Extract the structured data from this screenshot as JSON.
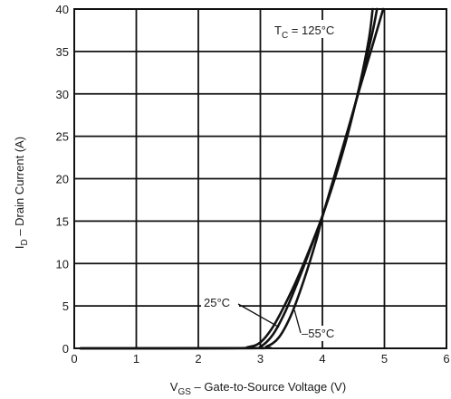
{
  "chart_data": {
    "type": "line",
    "xlabel": {
      "symbol": "V",
      "subscript": "GS",
      "text": " – Gate-to-Source Voltage (V)"
    },
    "ylabel": {
      "symbol": "I",
      "subscript": "D",
      "text": " – Drain Current (A)"
    },
    "xlim": [
      0,
      6
    ],
    "ylim": [
      0,
      40
    ],
    "xticks": [
      0,
      1,
      2,
      3,
      4,
      5,
      6
    ],
    "yticks": [
      0,
      5,
      10,
      15,
      20,
      25,
      30,
      35,
      40
    ],
    "grid": true,
    "series": [
      {
        "name": "125°C",
        "x": [
          0.1,
          2.5,
          2.8,
          3.0,
          3.2,
          3.4,
          3.6,
          3.8,
          4.0,
          4.2,
          4.4,
          4.6,
          4.75,
          4.81
        ],
        "y": [
          0,
          0.02,
          0.15,
          0.7,
          2.5,
          5.2,
          8.3,
          11.8,
          15.6,
          20.0,
          25.0,
          31.0,
          36.5,
          40
        ]
      },
      {
        "name": "25°C",
        "x": [
          0.1,
          2.8,
          3.0,
          3.2,
          3.4,
          3.6,
          3.8,
          4.0,
          4.2,
          4.4,
          4.6,
          4.8,
          4.88
        ],
        "y": [
          0,
          0.02,
          0.2,
          1.6,
          4.3,
          7.8,
          11.6,
          15.6,
          20.3,
          25.3,
          30.8,
          37.0,
          40
        ]
      },
      {
        "name": "−55°C",
        "x": [
          0.1,
          2.9,
          3.1,
          3.3,
          3.5,
          3.7,
          3.9,
          4.0,
          4.2,
          4.4,
          4.6,
          4.8,
          4.98
        ],
        "y": [
          0,
          0.02,
          0.2,
          1.3,
          4.0,
          8.0,
          12.7,
          15.5,
          20.5,
          25.5,
          30.6,
          35.5,
          40
        ]
      }
    ],
    "annotations": [
      {
        "symbol": "T",
        "subscript": "C",
        "text": " = 125°C",
        "series": "125°C"
      },
      {
        "text": "25°C",
        "series": "25°C",
        "point": [
          3.3,
          2.5
        ]
      },
      {
        "text": "–55°C",
        "series": "−55°C",
        "point": [
          3.55,
          4.5
        ]
      }
    ]
  }
}
